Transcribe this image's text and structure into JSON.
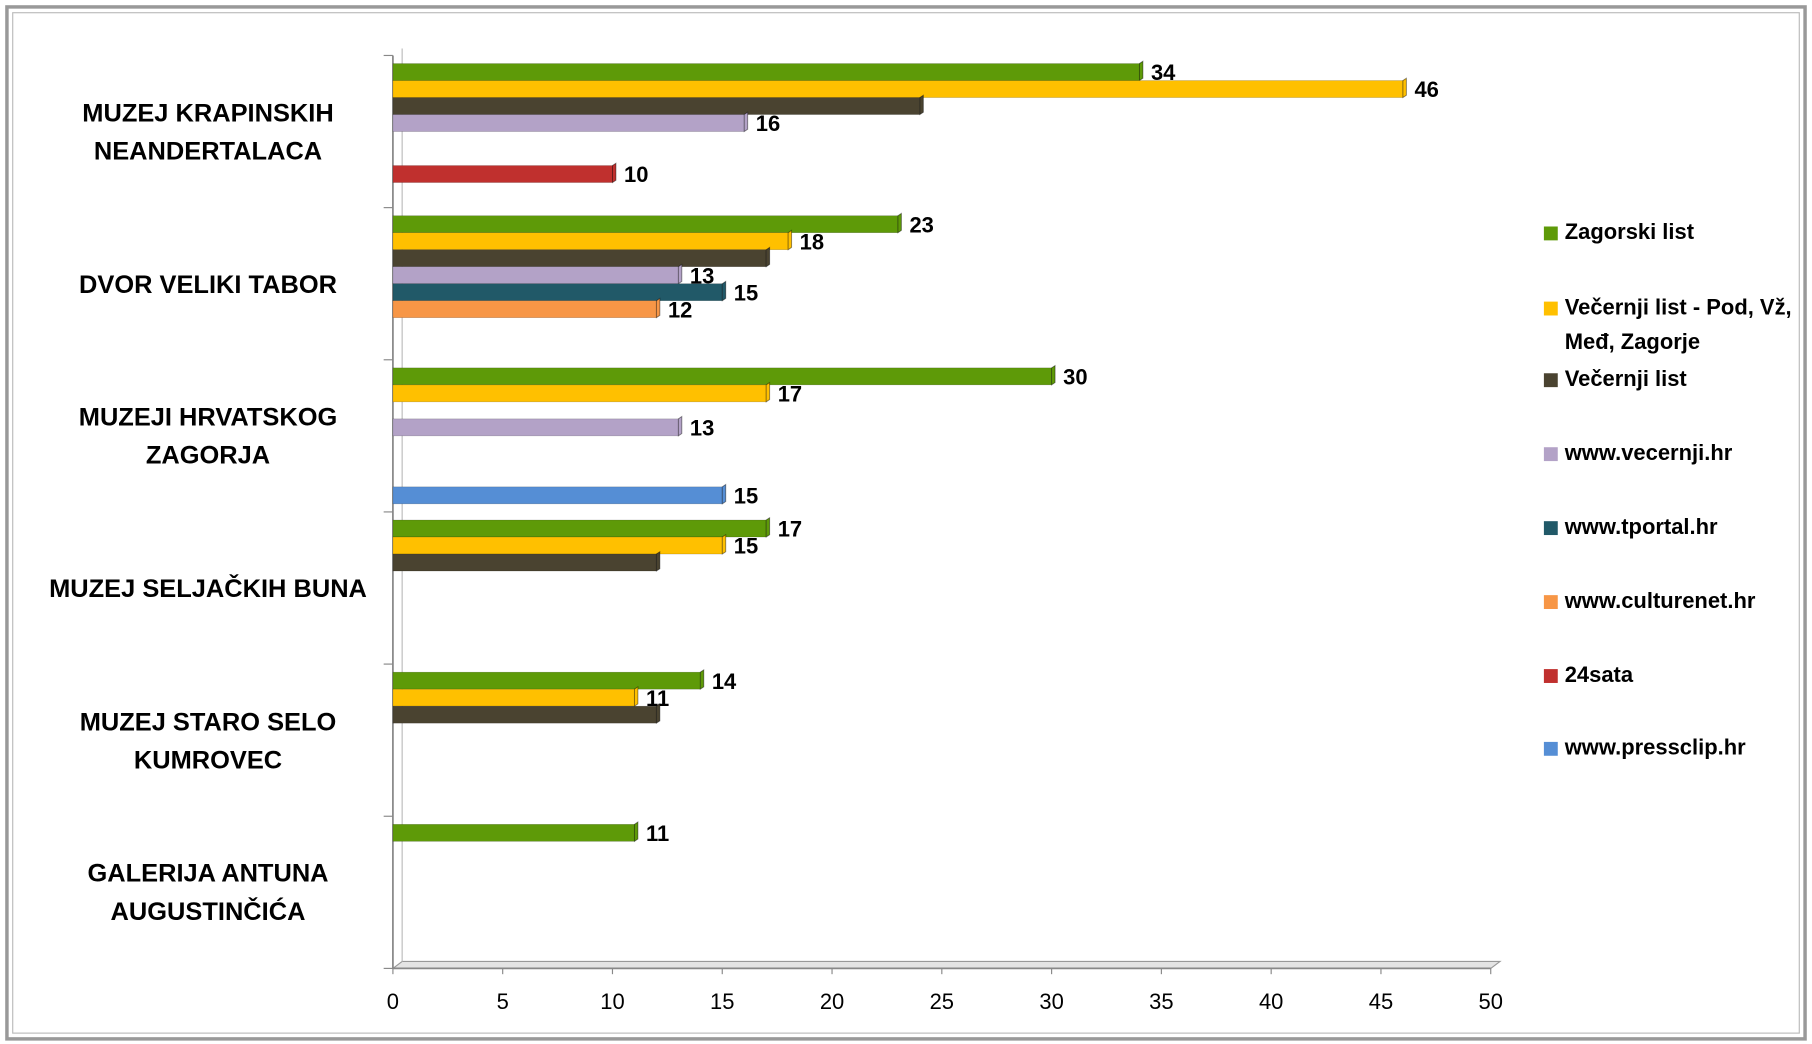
{
  "chart_data": {
    "type": "bar",
    "orientation": "horizontal",
    "categories": [
      "MUZEJ KRAPINSKIH NEANDERTALACA",
      "DVOR VELIKI TABOR",
      "MUZEJI HRVATSKOG ZAGORJA",
      "MUZEJ SELJAČKIH BUNA",
      "MUZEJ STARO SELO KUMROVEC",
      "GALERIJA ANTUNA AUGUSTINČIĆA"
    ],
    "series": [
      {
        "name": "Zagorski list",
        "color": "#5e9a08",
        "values": [
          34,
          23,
          30,
          17,
          14,
          11
        ]
      },
      {
        "name": "Večernji list - Pod, Vž, Međ, Zagorje",
        "color": "#ffc000",
        "values": [
          46,
          18,
          17,
          15,
          11,
          null
        ]
      },
      {
        "name": "Večernji list",
        "color": "#4a4330",
        "values": [
          24,
          17,
          null,
          12,
          12,
          null
        ],
        "data_labels": false
      },
      {
        "name": "www.vecernji.hr",
        "color": "#b3a2c7",
        "values": [
          16,
          13,
          13,
          null,
          null,
          null
        ]
      },
      {
        "name": "www.tportal.hr",
        "color": "#215968",
        "values": [
          null,
          15,
          null,
          null,
          null,
          null
        ]
      },
      {
        "name": "www.culturenet.hr",
        "color": "#f79646",
        "values": [
          null,
          12,
          null,
          null,
          null,
          null
        ]
      },
      {
        "name": "24sata",
        "color": "#c0302e",
        "values": [
          10,
          null,
          null,
          null,
          null,
          null
        ]
      },
      {
        "name": "www.pressclip.hr",
        "color": "#558ed5",
        "values": [
          null,
          null,
          15,
          null,
          null,
          null
        ]
      }
    ],
    "xlim": [
      0,
      50
    ],
    "xticks": [
      0,
      5,
      10,
      15,
      20,
      25,
      30,
      35,
      40,
      45,
      50
    ],
    "legend": "right"
  }
}
